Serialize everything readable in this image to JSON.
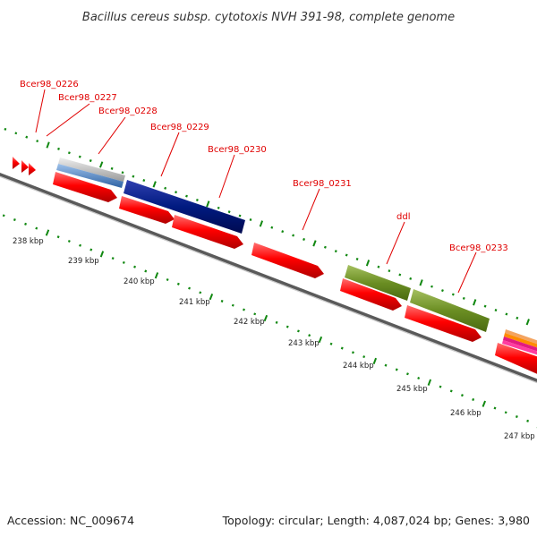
{
  "title": "Bacillus cereus subsp. cytotoxis NVH 391-98, complete genome",
  "footer": {
    "accession": "Accession: NC_009674",
    "topology": "Topology: circular; Length: 4,087,024 bp; Genes: 3,980"
  },
  "colors": {
    "cds": "#ff0000",
    "backbone": "#888888",
    "tick": "#118811",
    "navy": "#001a80",
    "olive": "#6b8e23",
    "steelblue": "#4f83c4",
    "lightgray": "#c8c8c8",
    "label": "#e00000"
  },
  "kbp_labels": [
    "238 kbp",
    "239 kbp",
    "240 kbp",
    "241 kbp",
    "242 kbp",
    "243 kbp",
    "244 kbp",
    "245 kbp",
    "246 kbp",
    "247 kbp"
  ],
  "gene_labels": [
    "Bcer98_0226",
    "Bcer98_0227",
    "Bcer98_0228",
    "Bcer98_0229",
    "Bcer98_0230",
    "Bcer98_0231",
    "ddl",
    "Bcer98_0233"
  ]
}
